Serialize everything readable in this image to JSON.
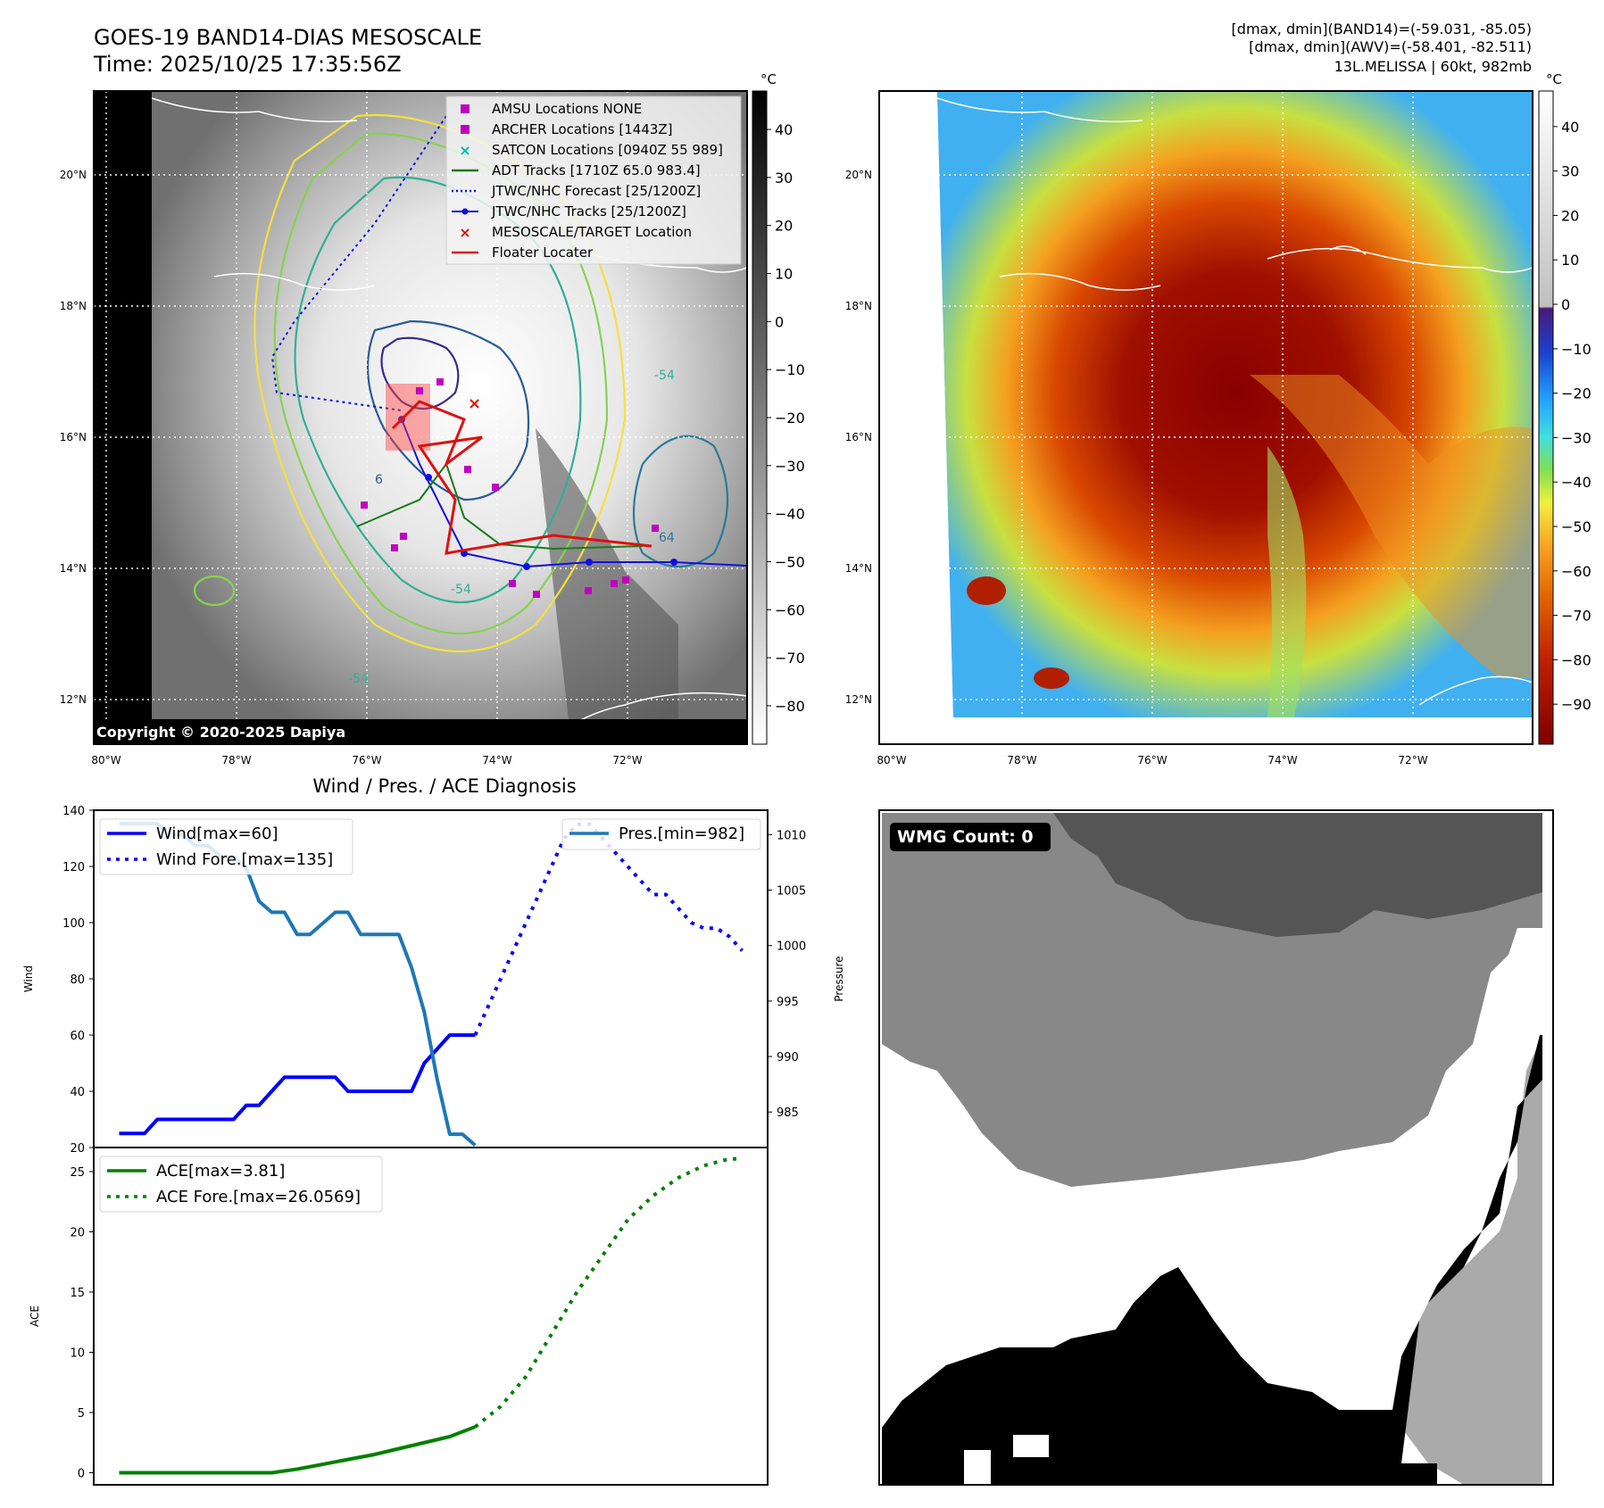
{
  "header": {
    "title_line1": "GOES-19 BAND14-DIAS MESOSCALE",
    "title_line2": "Time: 2025/10/25 17:35:56Z",
    "dmax_band14": "[dmax, dmin](BAND14)=(-59.031, -85.05)",
    "dmax_awv": "[dmax, dmin](AWV)=(-58.401, -82.511)",
    "storm_info": "13L.MELISSA | 60kt, 982mb",
    "copyright": "Copyright © 2020-2025 Dapiya"
  },
  "map": {
    "lat_labels": [
      "20°N",
      "18°N",
      "16°N",
      "14°N",
      "12°N"
    ],
    "lon_labels": [
      "80°W",
      "78°W",
      "76°W",
      "74°W",
      "72°W"
    ],
    "legend": [
      {
        "label": "AMSU Locations NONE",
        "color": "#c000c0",
        "kind": "square"
      },
      {
        "label": "ARCHER Locations [1443Z]",
        "color": "#c000c0",
        "kind": "square"
      },
      {
        "label": "SATCON Locations [0940Z 55 989]",
        "color": "#00b8b8",
        "kind": "x"
      },
      {
        "label": "ADT Tracks [1710Z 65.0 983.4]",
        "color": "#1a7a1a",
        "kind": "line"
      },
      {
        "label": "JTWC/NHC Forecast [25/1200Z]",
        "color": "#1010e0",
        "kind": "dotted"
      },
      {
        "label": "JTWC/NHC Tracks [25/1200Z]",
        "color": "#1010e0",
        "kind": "dotline"
      },
      {
        "label": "MESOSCALE/TARGET Location",
        "color": "#e01010",
        "kind": "x"
      },
      {
        "label": "Floater Locater",
        "color": "#e01010",
        "kind": "line"
      }
    ],
    "contour_labels": [
      "-54",
      "-54",
      "-54",
      "64",
      "6"
    ]
  },
  "colorbar_gray": {
    "unit": "°C",
    "ticks": [
      "40",
      "30",
      "20",
      "10",
      "0",
      "−10",
      "−20",
      "−30",
      "−40",
      "−50",
      "−60",
      "−70",
      "−80"
    ]
  },
  "colorbar_color": {
    "unit": "°C",
    "ticks": [
      "40",
      "30",
      "20",
      "10",
      "0",
      "−10",
      "−20",
      "−30",
      "−40",
      "−50",
      "−60",
      "−70",
      "−80",
      "−90"
    ]
  },
  "wmg": {
    "label": "WMG Count: 0"
  },
  "chart_data": [
    {
      "type": "line",
      "title": "Wind / Pres. / ACE Diagnosis",
      "ylabel": "Wind",
      "y2label": "Pressure",
      "ylim": [
        20,
        140
      ],
      "y2lim": [
        981.8,
        1012.2
      ],
      "yticks": [
        "140",
        "120",
        "100",
        "80",
        "60",
        "40",
        "20"
      ],
      "y2ticks": [
        "1010",
        "1005",
        "1000",
        "995",
        "990",
        "985"
      ],
      "x": [
        0,
        1,
        2,
        3,
        4,
        5,
        6,
        7,
        8,
        9,
        10,
        11,
        12,
        13,
        14,
        15,
        16,
        17,
        18,
        19,
        20,
        21,
        22,
        23,
        24,
        25,
        26,
        27,
        28,
        29,
        30,
        31,
        32,
        33,
        34,
        35,
        36,
        37,
        38,
        39,
        40,
        41,
        42,
        43,
        44,
        45,
        46,
        47,
        48,
        49
      ],
      "series": [
        {
          "name": "Wind[max=60]",
          "axis": "left",
          "style": "solid",
          "color": "#0000ff",
          "x": [
            0,
            1,
            2,
            3,
            4,
            5,
            6,
            7,
            8,
            9,
            10,
            11,
            12,
            13,
            14,
            15,
            16,
            17,
            18,
            19,
            20,
            21,
            22,
            23,
            24,
            25,
            26,
            27,
            28
          ],
          "values": [
            25,
            25,
            25,
            30,
            30,
            30,
            30,
            30,
            30,
            30,
            35,
            35,
            40,
            45,
            45,
            45,
            45,
            45,
            40,
            40,
            40,
            40,
            40,
            40,
            50,
            55,
            60,
            60,
            60
          ]
        },
        {
          "name": "Wind Fore.[max=135]",
          "axis": "left",
          "style": "dotted",
          "color": "#0000ff",
          "x": [
            28,
            29,
            30,
            31,
            32,
            33,
            34,
            35,
            36,
            37,
            38,
            39,
            40,
            41,
            42,
            43,
            44,
            45,
            46,
            47,
            48,
            49
          ],
          "values": [
            60,
            70,
            80,
            90,
            100,
            110,
            120,
            130,
            135,
            135,
            130,
            125,
            120,
            115,
            110,
            110,
            105,
            100,
            98,
            98,
            95,
            90
          ]
        },
        {
          "name": "Pres.[min=982]",
          "axis": "right",
          "style": "solid",
          "color": "#1f77b4",
          "x": [
            0,
            1,
            2,
            3,
            4,
            5,
            6,
            7,
            8,
            9,
            10,
            11,
            12,
            13,
            14,
            15,
            16,
            17,
            18,
            19,
            20,
            21,
            22,
            23,
            24,
            25,
            26,
            27,
            28
          ],
          "values": [
            1011,
            1011,
            1011,
            1011,
            1010,
            1010,
            1009,
            1009,
            1008,
            1008,
            1007,
            1004,
            1003,
            1003,
            1001,
            1001,
            1002,
            1003,
            1003,
            1001,
            1001,
            1001,
            1001,
            998,
            994,
            988,
            983,
            983,
            982
          ]
        }
      ],
      "legend_left": [
        "Wind[max=60]",
        "Wind Fore.[max=135]"
      ],
      "legend_right": [
        "Pres.[min=982]"
      ]
    },
    {
      "type": "line",
      "ylabel": "ACE",
      "ylim": [
        -1,
        27
      ],
      "yticks": [
        "25",
        "20",
        "15",
        "10",
        "5",
        "0"
      ],
      "series": [
        {
          "name": "ACE[max=3.81]",
          "style": "solid",
          "color": "#008000",
          "x": [
            0,
            4,
            8,
            12,
            14,
            16,
            18,
            20,
            22,
            24,
            26,
            28
          ],
          "values": [
            0,
            0,
            0,
            0,
            0.3,
            0.7,
            1.1,
            1.5,
            2.0,
            2.5,
            3.0,
            3.81
          ]
        },
        {
          "name": "ACE Fore.[max=26.0569]",
          "style": "dotted",
          "color": "#008000",
          "x": [
            28,
            30,
            32,
            34,
            36,
            38,
            40,
            42,
            44,
            46,
            48,
            49
          ],
          "values": [
            3.81,
            5.5,
            8,
            11.5,
            15,
            18,
            21,
            23,
            24.5,
            25.5,
            26.0569,
            26.0569
          ]
        }
      ],
      "legend": [
        "ACE[max=3.81]",
        "ACE Fore.[max=26.0569]"
      ]
    }
  ]
}
